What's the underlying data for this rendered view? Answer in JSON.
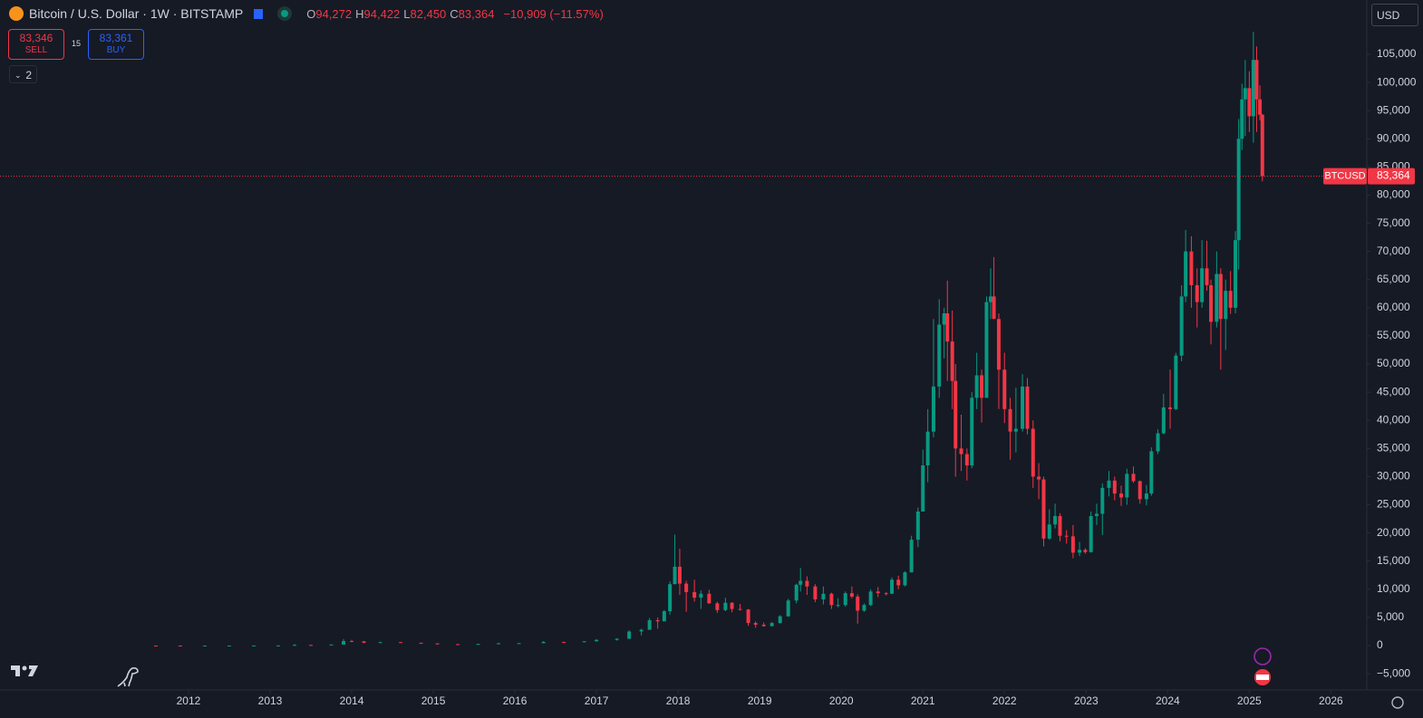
{
  "header": {
    "symbol": "Bitcoin / U.S. Dollar · 1W · BITSTAMP",
    "ohlc": [
      {
        "key": "O",
        "value": "94,272"
      },
      {
        "key": "H",
        "value": "94,422"
      },
      {
        "key": "L",
        "value": "82,450"
      },
      {
        "key": "C",
        "value": "83,364"
      }
    ],
    "change": "−10,909 (−11.57%)",
    "sell": {
      "price": "83,346",
      "label": "SELL"
    },
    "spread": "15",
    "buy": {
      "price": "83,361",
      "label": "BUY"
    },
    "indicators": "2",
    "currency": "USD"
  },
  "chart_data": {
    "type": "candlestick",
    "up_color": "#089981",
    "down_color": "#f23645",
    "grid": false,
    "price_tag": {
      "symbol": "BTCUSD",
      "label": "83,364"
    },
    "xlim": [
      2009.69,
      2026.44
    ],
    "xticks": [
      2012,
      2013,
      2014,
      2015,
      2016,
      2017,
      2018,
      2019,
      2020,
      2021,
      2022,
      2023,
      2024,
      2025,
      2026
    ],
    "ylim": [
      -7880,
      114650
    ],
    "yticks": [
      {
        "value": -5000,
        "label": "−5,000"
      },
      0,
      {
        "value": 5000,
        "label": "5,000"
      },
      {
        "value": 10000,
        "label": "10,000"
      },
      {
        "value": 15000,
        "label": "15,000"
      },
      {
        "value": 20000,
        "label": "20,000"
      },
      {
        "value": 25000,
        "label": "25,000"
      },
      {
        "value": 30000,
        "label": "30,000"
      },
      {
        "value": 35000,
        "label": "35,000"
      },
      {
        "value": 40000,
        "label": "40,000"
      },
      {
        "value": 45000,
        "label": "45,000"
      },
      {
        "value": 50000,
        "label": "50,000"
      },
      {
        "value": 55000,
        "label": "55,000"
      },
      {
        "value": 60000,
        "label": "60,000"
      },
      {
        "value": 65000,
        "label": "65,000"
      },
      {
        "value": 70000,
        "label": "70,000"
      },
      {
        "value": 75000,
        "label": "75,000"
      },
      {
        "value": 80000,
        "label": "80,000"
      },
      {
        "value": 85000,
        "label": "85,000"
      },
      {
        "value": 90000,
        "label": "90,000"
      },
      {
        "value": 95000,
        "label": "95,000"
      },
      {
        "value": 100000,
        "label": "100,000"
      },
      {
        "value": 105000,
        "label": "105,000"
      }
    ],
    "candles": [
      {
        "x": 2011.6,
        "o": 6,
        "h": 8,
        "l": 4,
        "c": 5
      },
      {
        "x": 2011.9,
        "o": 5,
        "h": 6,
        "l": 2,
        "c": 3
      },
      {
        "x": 2012.2,
        "o": 3,
        "h": 6,
        "l": 3,
        "c": 5
      },
      {
        "x": 2012.5,
        "o": 5,
        "h": 9,
        "l": 5,
        "c": 8
      },
      {
        "x": 2012.8,
        "o": 8,
        "h": 13,
        "l": 8,
        "c": 12
      },
      {
        "x": 2013.1,
        "o": 12,
        "h": 25,
        "l": 12,
        "c": 20
      },
      {
        "x": 2013.3,
        "o": 20,
        "h": 260,
        "l": 50,
        "c": 110
      },
      {
        "x": 2013.5,
        "o": 110,
        "h": 130,
        "l": 65,
        "c": 100
      },
      {
        "x": 2013.75,
        "o": 100,
        "h": 200,
        "l": 100,
        "c": 180
      },
      {
        "x": 2013.9,
        "o": 180,
        "h": 1160,
        "l": 180,
        "c": 800
      },
      {
        "x": 2014.0,
        "o": 800,
        "h": 1000,
        "l": 600,
        "c": 750
      },
      {
        "x": 2014.15,
        "o": 750,
        "h": 800,
        "l": 400,
        "c": 500
      },
      {
        "x": 2014.35,
        "o": 500,
        "h": 680,
        "l": 440,
        "c": 600
      },
      {
        "x": 2014.6,
        "o": 600,
        "h": 650,
        "l": 480,
        "c": 500
      },
      {
        "x": 2014.85,
        "o": 500,
        "h": 500,
        "l": 300,
        "c": 380
      },
      {
        "x": 2015.05,
        "o": 380,
        "h": 400,
        "l": 170,
        "c": 250
      },
      {
        "x": 2015.3,
        "o": 250,
        "h": 300,
        "l": 220,
        "c": 240
      },
      {
        "x": 2015.55,
        "o": 240,
        "h": 320,
        "l": 240,
        "c": 280
      },
      {
        "x": 2015.8,
        "o": 280,
        "h": 500,
        "l": 280,
        "c": 400
      },
      {
        "x": 2016.05,
        "o": 400,
        "h": 460,
        "l": 360,
        "c": 420
      },
      {
        "x": 2016.35,
        "o": 420,
        "h": 780,
        "l": 420,
        "c": 650
      },
      {
        "x": 2016.6,
        "o": 650,
        "h": 660,
        "l": 480,
        "c": 600
      },
      {
        "x": 2016.85,
        "o": 600,
        "h": 800,
        "l": 600,
        "c": 750
      },
      {
        "x": 2017.0,
        "o": 750,
        "h": 1150,
        "l": 780,
        "c": 1000
      },
      {
        "x": 2017.25,
        "o": 1000,
        "h": 1300,
        "l": 900,
        "c": 1200
      },
      {
        "x": 2017.4,
        "o": 1200,
        "h": 2700,
        "l": 1200,
        "c": 2500
      },
      {
        "x": 2017.55,
        "o": 2500,
        "h": 3000,
        "l": 1800,
        "c": 2800
      },
      {
        "x": 2017.65,
        "o": 2800,
        "h": 4900,
        "l": 2800,
        "c": 4500
      },
      {
        "x": 2017.75,
        "o": 4500,
        "h": 5000,
        "l": 3000,
        "c": 4300
      },
      {
        "x": 2017.83,
        "o": 4300,
        "h": 6300,
        "l": 4300,
        "c": 6100
      },
      {
        "x": 2017.9,
        "o": 6100,
        "h": 11400,
        "l": 5500,
        "c": 10900
      },
      {
        "x": 2017.96,
        "o": 10900,
        "h": 19700,
        "l": 10900,
        "c": 14000
      },
      {
        "x": 2018.02,
        "o": 14000,
        "h": 17200,
        "l": 9000,
        "c": 11000
      },
      {
        "x": 2018.1,
        "o": 11000,
        "h": 11500,
        "l": 6000,
        "c": 9500
      },
      {
        "x": 2018.2,
        "o": 9500,
        "h": 11700,
        "l": 7800,
        "c": 8500
      },
      {
        "x": 2018.28,
        "o": 8500,
        "h": 9800,
        "l": 6500,
        "c": 9200
      },
      {
        "x": 2018.38,
        "o": 9200,
        "h": 9900,
        "l": 7400,
        "c": 7500
      },
      {
        "x": 2018.48,
        "o": 7500,
        "h": 7800,
        "l": 5800,
        "c": 6300
      },
      {
        "x": 2018.58,
        "o": 6300,
        "h": 8500,
        "l": 6100,
        "c": 7600
      },
      {
        "x": 2018.66,
        "o": 7600,
        "h": 7700,
        "l": 5900,
        "c": 6500
      },
      {
        "x": 2018.76,
        "o": 6500,
        "h": 7400,
        "l": 6200,
        "c": 6400
      },
      {
        "x": 2018.86,
        "o": 6400,
        "h": 6500,
        "l": 3500,
        "c": 4000
      },
      {
        "x": 2018.95,
        "o": 4000,
        "h": 4300,
        "l": 3150,
        "c": 3700
      },
      {
        "x": 2019.05,
        "o": 3700,
        "h": 4100,
        "l": 3350,
        "c": 3450
      },
      {
        "x": 2019.15,
        "o": 3450,
        "h": 4200,
        "l": 3400,
        "c": 4000
      },
      {
        "x": 2019.25,
        "o": 4000,
        "h": 5400,
        "l": 3900,
        "c": 5200
      },
      {
        "x": 2019.35,
        "o": 5200,
        "h": 8300,
        "l": 5100,
        "c": 8000
      },
      {
        "x": 2019.45,
        "o": 8000,
        "h": 11000,
        "l": 7500,
        "c": 10800
      },
      {
        "x": 2019.5,
        "o": 10800,
        "h": 13800,
        "l": 9600,
        "c": 11500
      },
      {
        "x": 2019.58,
        "o": 11500,
        "h": 12300,
        "l": 9000,
        "c": 10500
      },
      {
        "x": 2019.68,
        "o": 10500,
        "h": 10900,
        "l": 7700,
        "c": 8200
      },
      {
        "x": 2019.78,
        "o": 8200,
        "h": 10500,
        "l": 7300,
        "c": 9200
      },
      {
        "x": 2019.88,
        "o": 9200,
        "h": 9400,
        "l": 6500,
        "c": 7200
      },
      {
        "x": 2019.96,
        "o": 7200,
        "h": 8400,
        "l": 6800,
        "c": 7200
      },
      {
        "x": 2020.05,
        "o": 7200,
        "h": 9600,
        "l": 6900,
        "c": 9300
      },
      {
        "x": 2020.13,
        "o": 9300,
        "h": 10500,
        "l": 8400,
        "c": 8700
      },
      {
        "x": 2020.2,
        "o": 8700,
        "h": 9100,
        "l": 3900,
        "c": 6200
      },
      {
        "x": 2020.28,
        "o": 6200,
        "h": 7500,
        "l": 6000,
        "c": 7200
      },
      {
        "x": 2020.36,
        "o": 7200,
        "h": 10000,
        "l": 7000,
        "c": 9600
      },
      {
        "x": 2020.45,
        "o": 9600,
        "h": 10400,
        "l": 8600,
        "c": 9300
      },
      {
        "x": 2020.55,
        "o": 9300,
        "h": 9500,
        "l": 8900,
        "c": 9200
      },
      {
        "x": 2020.62,
        "o": 9200,
        "h": 12100,
        "l": 9200,
        "c": 11700
      },
      {
        "x": 2020.7,
        "o": 11700,
        "h": 12400,
        "l": 10000,
        "c": 10700
      },
      {
        "x": 2020.78,
        "o": 10700,
        "h": 13200,
        "l": 10500,
        "c": 13000
      },
      {
        "x": 2020.86,
        "o": 13000,
        "h": 19500,
        "l": 13000,
        "c": 18800
      },
      {
        "x": 2020.94,
        "o": 18800,
        "h": 24500,
        "l": 17500,
        "c": 23800
      },
      {
        "x": 2021.0,
        "o": 23800,
        "h": 34800,
        "l": 23800,
        "c": 32000
      },
      {
        "x": 2021.06,
        "o": 32000,
        "h": 42000,
        "l": 29000,
        "c": 38000
      },
      {
        "x": 2021.13,
        "o": 38000,
        "h": 58000,
        "l": 37000,
        "c": 46000
      },
      {
        "x": 2021.2,
        "o": 46000,
        "h": 61500,
        "l": 44000,
        "c": 57000
      },
      {
        "x": 2021.26,
        "o": 57000,
        "h": 60000,
        "l": 51000,
        "c": 59000
      },
      {
        "x": 2021.3,
        "o": 59000,
        "h": 64800,
        "l": 47000,
        "c": 54000
      },
      {
        "x": 2021.36,
        "o": 54000,
        "h": 59500,
        "l": 42000,
        "c": 47000
      },
      {
        "x": 2021.4,
        "o": 47000,
        "h": 50000,
        "l": 30000,
        "c": 35000
      },
      {
        "x": 2021.47,
        "o": 35000,
        "h": 41000,
        "l": 31000,
        "c": 34000
      },
      {
        "x": 2021.54,
        "o": 34000,
        "h": 35000,
        "l": 29300,
        "c": 32000
      },
      {
        "x": 2021.6,
        "o": 32000,
        "h": 45000,
        "l": 31500,
        "c": 44000
      },
      {
        "x": 2021.66,
        "o": 44000,
        "h": 52000,
        "l": 42000,
        "c": 48000
      },
      {
        "x": 2021.72,
        "o": 48000,
        "h": 49000,
        "l": 39600,
        "c": 44000
      },
      {
        "x": 2021.78,
        "o": 44000,
        "h": 62000,
        "l": 44000,
        "c": 61000
      },
      {
        "x": 2021.83,
        "o": 61000,
        "h": 67000,
        "l": 58000,
        "c": 62000
      },
      {
        "x": 2021.87,
        "o": 62000,
        "h": 69000,
        "l": 58000,
        "c": 58000
      },
      {
        "x": 2021.93,
        "o": 58000,
        "h": 59000,
        "l": 42000,
        "c": 49000
      },
      {
        "x": 2022.0,
        "o": 49000,
        "h": 52000,
        "l": 39500,
        "c": 42000
      },
      {
        "x": 2022.07,
        "o": 42000,
        "h": 44000,
        "l": 33000,
        "c": 38000
      },
      {
        "x": 2022.14,
        "o": 38000,
        "h": 45800,
        "l": 34300,
        "c": 38500
      },
      {
        "x": 2022.22,
        "o": 38500,
        "h": 48200,
        "l": 38000,
        "c": 46000
      },
      {
        "x": 2022.28,
        "o": 46000,
        "h": 47500,
        "l": 37500,
        "c": 38500
      },
      {
        "x": 2022.35,
        "o": 38500,
        "h": 40000,
        "l": 28000,
        "c": 30000
      },
      {
        "x": 2022.42,
        "o": 30000,
        "h": 32400,
        "l": 26000,
        "c": 29500
      },
      {
        "x": 2022.48,
        "o": 29500,
        "h": 30000,
        "l": 17600,
        "c": 19000
      },
      {
        "x": 2022.55,
        "o": 19000,
        "h": 24200,
        "l": 18800,
        "c": 21500
      },
      {
        "x": 2022.62,
        "o": 21500,
        "h": 25200,
        "l": 20800,
        "c": 23000
      },
      {
        "x": 2022.68,
        "o": 23000,
        "h": 23500,
        "l": 18500,
        "c": 19500
      },
      {
        "x": 2022.76,
        "o": 19500,
        "h": 20500,
        "l": 18100,
        "c": 19400
      },
      {
        "x": 2022.84,
        "o": 19400,
        "h": 21400,
        "l": 15500,
        "c": 16500
      },
      {
        "x": 2022.92,
        "o": 16500,
        "h": 18400,
        "l": 15900,
        "c": 17000
      },
      {
        "x": 2022.99,
        "o": 17000,
        "h": 17300,
        "l": 16300,
        "c": 16600
      },
      {
        "x": 2023.06,
        "o": 16600,
        "h": 23800,
        "l": 16500,
        "c": 23000
      },
      {
        "x": 2023.13,
        "o": 23000,
        "h": 25200,
        "l": 21400,
        "c": 23400
      },
      {
        "x": 2023.2,
        "o": 23400,
        "h": 28800,
        "l": 19600,
        "c": 28000
      },
      {
        "x": 2023.28,
        "o": 28000,
        "h": 31000,
        "l": 26500,
        "c": 29300
      },
      {
        "x": 2023.35,
        "o": 29300,
        "h": 30000,
        "l": 25800,
        "c": 27000
      },
      {
        "x": 2023.43,
        "o": 27000,
        "h": 28400,
        "l": 24800,
        "c": 26300
      },
      {
        "x": 2023.5,
        "o": 26300,
        "h": 31400,
        "l": 25000,
        "c": 30500
      },
      {
        "x": 2023.58,
        "o": 30500,
        "h": 31800,
        "l": 28900,
        "c": 29200
      },
      {
        "x": 2023.66,
        "o": 29200,
        "h": 29300,
        "l": 25200,
        "c": 26000
      },
      {
        "x": 2023.74,
        "o": 26000,
        "h": 28500,
        "l": 24900,
        "c": 27000
      },
      {
        "x": 2023.8,
        "o": 27000,
        "h": 35200,
        "l": 26600,
        "c": 34500
      },
      {
        "x": 2023.88,
        "o": 34500,
        "h": 38400,
        "l": 34000,
        "c": 37700
      },
      {
        "x": 2023.95,
        "o": 37700,
        "h": 44700,
        "l": 37500,
        "c": 42300
      },
      {
        "x": 2024.03,
        "o": 42300,
        "h": 49000,
        "l": 38500,
        "c": 42000
      },
      {
        "x": 2024.1,
        "o": 42000,
        "h": 52000,
        "l": 41800,
        "c": 51500
      },
      {
        "x": 2024.17,
        "o": 51500,
        "h": 64000,
        "l": 50500,
        "c": 62000
      },
      {
        "x": 2024.22,
        "o": 62000,
        "h": 73800,
        "l": 61000,
        "c": 70000
      },
      {
        "x": 2024.29,
        "o": 70000,
        "h": 72700,
        "l": 60000,
        "c": 64000
      },
      {
        "x": 2024.36,
        "o": 64000,
        "h": 67000,
        "l": 56500,
        "c": 61000
      },
      {
        "x": 2024.42,
        "o": 61000,
        "h": 72000,
        "l": 60000,
        "c": 67000
      },
      {
        "x": 2024.48,
        "o": 67000,
        "h": 71900,
        "l": 63000,
        "c": 64000
      },
      {
        "x": 2024.53,
        "o": 64000,
        "h": 65000,
        "l": 53500,
        "c": 57500
      },
      {
        "x": 2024.6,
        "o": 57500,
        "h": 70000,
        "l": 56500,
        "c": 66000
      },
      {
        "x": 2024.65,
        "o": 66000,
        "h": 67000,
        "l": 49000,
        "c": 58000
      },
      {
        "x": 2024.71,
        "o": 58000,
        "h": 65000,
        "l": 52500,
        "c": 63000
      },
      {
        "x": 2024.77,
        "o": 63000,
        "h": 66500,
        "l": 58900,
        "c": 60000
      },
      {
        "x": 2024.83,
        "o": 60000,
        "h": 73600,
        "l": 59000,
        "c": 72000
      },
      {
        "x": 2024.87,
        "o": 72000,
        "h": 93500,
        "l": 66800,
        "c": 90000
      },
      {
        "x": 2024.91,
        "o": 90000,
        "h": 99800,
        "l": 88000,
        "c": 97000
      },
      {
        "x": 2024.95,
        "o": 97000,
        "h": 104000,
        "l": 90500,
        "c": 99000
      },
      {
        "x": 2025.0,
        "o": 99000,
        "h": 102000,
        "l": 91200,
        "c": 94000
      },
      {
        "x": 2025.05,
        "o": 94000,
        "h": 109000,
        "l": 89300,
        "c": 104000
      },
      {
        "x": 2025.09,
        "o": 104000,
        "h": 106400,
        "l": 91200,
        "c": 97000
      },
      {
        "x": 2025.13,
        "o": 97000,
        "h": 99500,
        "l": 93300,
        "c": 94272
      },
      {
        "x": 2025.16,
        "o": 94272,
        "h": 94422,
        "l": 82450,
        "c": 83364
      }
    ]
  }
}
